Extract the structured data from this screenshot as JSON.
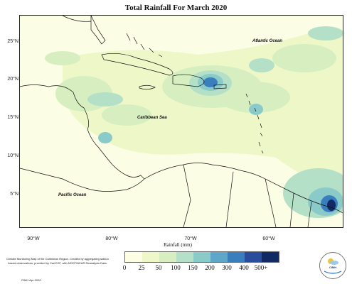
{
  "title": "Total Rainfall For March 2020",
  "y_axis_labels": [
    "25°N",
    "20°N",
    "15°N",
    "10°N",
    "5°N"
  ],
  "x_axis_labels": [
    "90°W",
    "80°W",
    "70°W",
    "60°W"
  ],
  "ocean_labels": {
    "atlantic": "Atlantic Ocean",
    "caribbean": "Caribbean Sea",
    "pacific": "Pacific Ocean"
  },
  "legend": {
    "title": "Rainfall (mm)",
    "ticks": [
      "0",
      "25",
      "50",
      "100",
      "150",
      "200",
      "300",
      "400",
      "500+"
    ],
    "colors": [
      "#fdfde3",
      "#eef7c8",
      "#d7efc0",
      "#b3e0c6",
      "#8acac9",
      "#5ea7c9",
      "#3a7fbd",
      "#294c9c",
      "#112a63"
    ]
  },
  "credit": "Climate Monitoring Map of the Caribbean Region. Created by aggregating station based observations, provided by CariCOF, with NCEP/NCAR Reanalysis Data.",
  "credit_date": "CIMH Apr-2020",
  "logo_text": "CIMH",
  "logo_icon": "cimh-sun-cloud-logo"
}
